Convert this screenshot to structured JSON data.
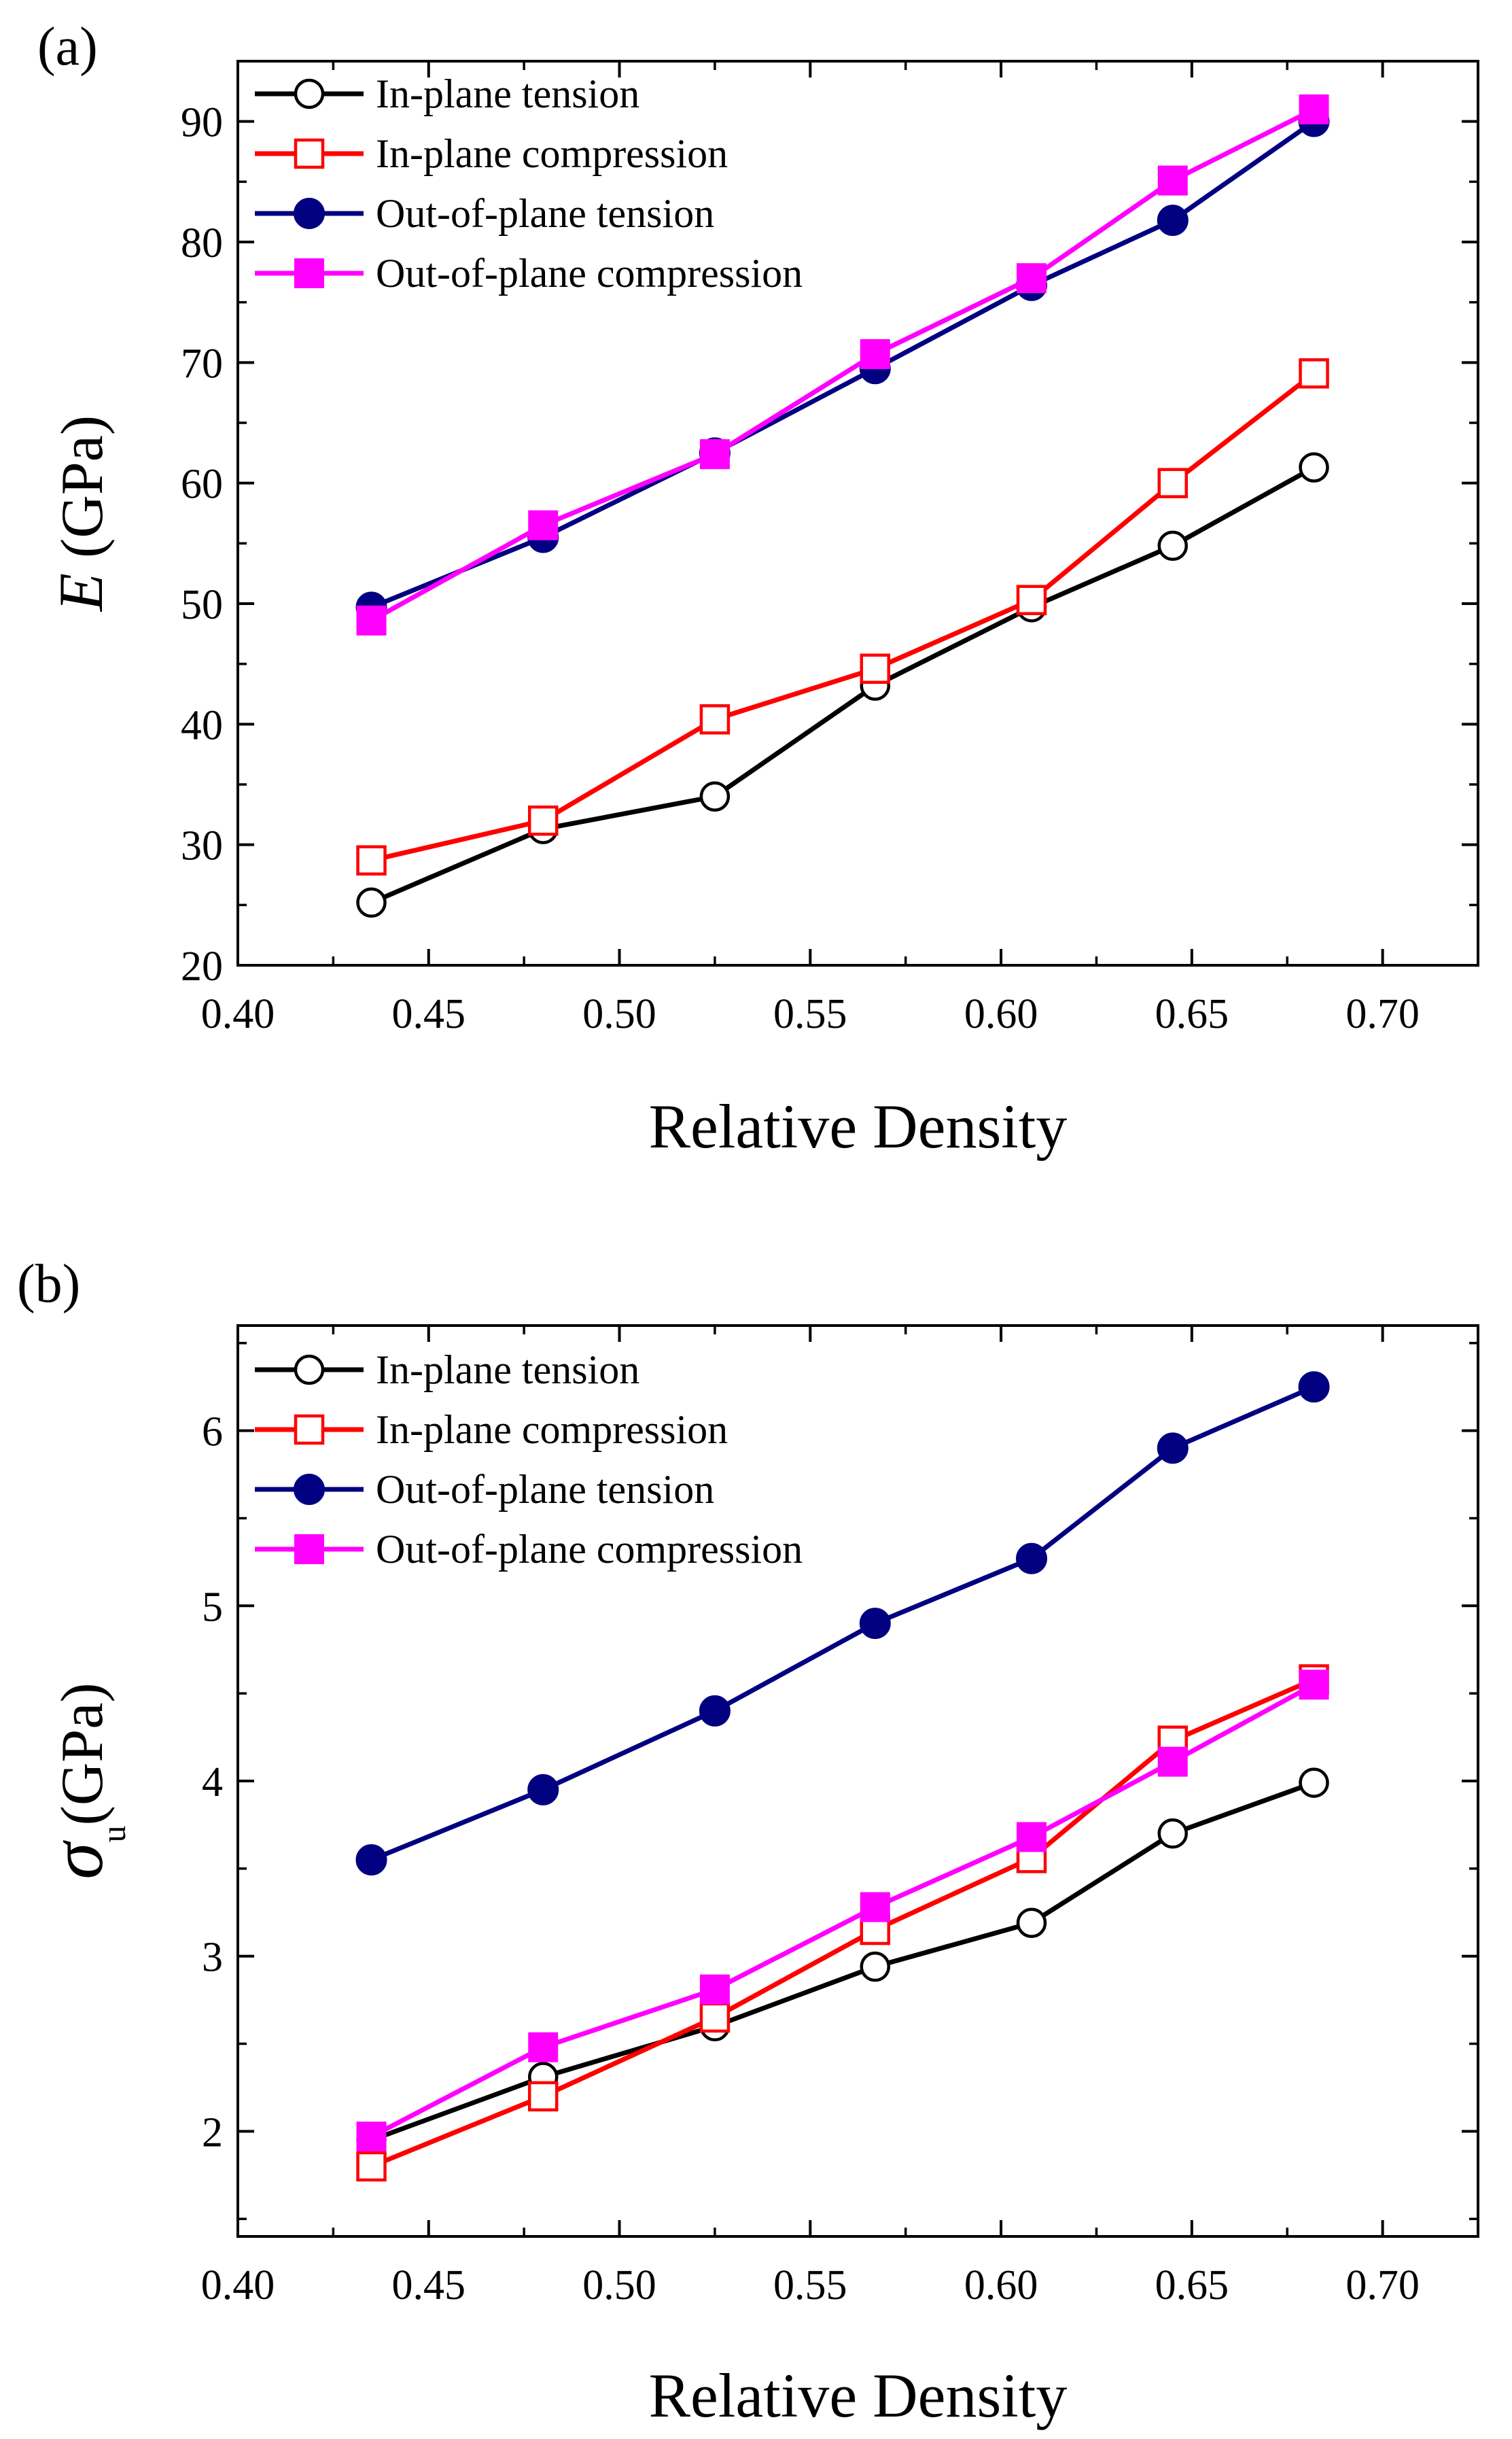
{
  "chart_data": [
    {
      "panel_label": "(a)",
      "type": "line",
      "xlabel": "Relative Density",
      "ylabel_main": "E",
      "ylabel_unit": " (GPa)",
      "xlim": [
        0.4,
        0.725
      ],
      "ylim": [
        20,
        95
      ],
      "xticks": [
        "0.40",
        "0.45",
        "0.50",
        "0.55",
        "0.60",
        "0.65",
        "0.70"
      ],
      "yticks": [
        "20",
        "30",
        "40",
        "50",
        "60",
        "70",
        "80",
        "90"
      ],
      "legend_position": "top-left",
      "x": [
        0.435,
        0.48,
        0.525,
        0.567,
        0.608,
        0.645,
        0.682
      ],
      "series": [
        {
          "name": "In-plane tension",
          "color": "#000000",
          "marker": "open-circle",
          "values": [
            25.2,
            31.3,
            34.0,
            43.2,
            49.7,
            54.8,
            61.3
          ]
        },
        {
          "name": "In-plane compression",
          "color": "#ff0000",
          "marker": "open-square",
          "values": [
            28.7,
            32.0,
            40.4,
            44.6,
            50.3,
            60.0,
            69.1
          ]
        },
        {
          "name": "Out-of-plane tension",
          "color": "#000080",
          "marker": "filled-circle",
          "values": [
            49.7,
            55.5,
            62.5,
            69.5,
            76.4,
            81.8,
            90.0
          ]
        },
        {
          "name": "Out-of-plane compression",
          "color": "#ff00ff",
          "marker": "filled-square",
          "values": [
            48.6,
            56.5,
            62.4,
            70.7,
            77.0,
            85.1,
            91.0
          ]
        }
      ]
    },
    {
      "panel_label": "(b)",
      "type": "line",
      "xlabel": "Relative Density",
      "ylabel_main": "σ",
      "ylabel_sub": "u",
      "ylabel_unit": "(GPa)",
      "xlim": [
        0.4,
        0.725
      ],
      "ylim": [
        1.4,
        6.6
      ],
      "xticks": [
        "0.40",
        "0.45",
        "0.50",
        "0.55",
        "0.60",
        "0.65",
        "0.70"
      ],
      "yticks": [
        "2",
        "3",
        "4",
        "5",
        "6"
      ],
      "legend_position": "top-left",
      "x": [
        0.435,
        0.48,
        0.525,
        0.567,
        0.608,
        0.645,
        0.682
      ],
      "series": [
        {
          "name": "In-plane tension",
          "color": "#000000",
          "marker": "open-circle",
          "values": [
            1.95,
            2.31,
            2.6,
            2.94,
            3.19,
            3.7,
            3.99
          ]
        },
        {
          "name": "In-plane compression",
          "color": "#ff0000",
          "marker": "open-square",
          "values": [
            1.8,
            2.2,
            2.65,
            3.15,
            3.56,
            4.23,
            4.58
          ]
        },
        {
          "name": "Out-of-plane tension",
          "color": "#000080",
          "marker": "filled-circle",
          "values": [
            3.55,
            3.95,
            4.4,
            4.9,
            5.27,
            5.9,
            6.25
          ]
        },
        {
          "name": "Out-of-plane compression",
          "color": "#ff00ff",
          "marker": "filled-square",
          "values": [
            1.97,
            2.48,
            2.81,
            3.28,
            3.68,
            4.11,
            4.55
          ]
        }
      ]
    }
  ]
}
